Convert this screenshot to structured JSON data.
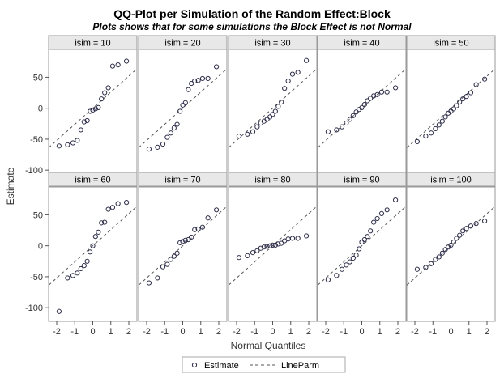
{
  "chart_data": {
    "type": "scatter",
    "title": "QQ-Plot per Simulation of the Random Effect:Block",
    "subtitle": "Plots shows that for some simulations the Block Effect is not Normal",
    "xlabel": "Normal Quantiles",
    "ylabel": "Estimate",
    "xlim": [
      -2.45,
      2.45
    ],
    "ylim": [
      -122,
      95
    ],
    "xticks": [
      -2,
      -1,
      0,
      1,
      2
    ],
    "yticks": [
      50,
      0,
      -50,
      -100
    ],
    "legend": {
      "position": "bottom",
      "entries": [
        "Estimate",
        "LineParm"
      ]
    },
    "colors": {
      "marker": "#2d2d4a",
      "line": "#555555",
      "strip": "#e8e8e8",
      "frame": "#9a9a9a"
    },
    "x_quantiles": [
      -1.87,
      -1.4,
      -1.1,
      -0.86,
      -0.66,
      -0.48,
      -0.31,
      -0.15,
      0.0,
      0.15,
      0.31,
      0.48,
      0.66,
      0.86,
      1.1,
      1.4,
      1.87
    ],
    "panels": [
      {
        "label": "isim = 10",
        "line": [
          0,
          26
        ],
        "y": [
          -61,
          -59,
          -56,
          -52,
          -35,
          -22,
          -20,
          -5,
          -3,
          -1,
          1,
          15,
          25,
          33,
          68,
          70,
          76
        ]
      },
      {
        "label": "isim = 20",
        "line": [
          0,
          26
        ],
        "y": [
          -66,
          -63,
          -58,
          -47,
          -40,
          -32,
          -26,
          -5,
          5,
          9,
          30,
          40,
          44,
          45,
          48,
          48,
          67
        ]
      },
      {
        "label": "isim = 30",
        "line": [
          0,
          26
        ],
        "y": [
          -45,
          -42,
          -38,
          -30,
          -24,
          -21,
          -18,
          -14,
          -10,
          -5,
          3,
          10,
          32,
          44,
          55,
          58,
          77
        ]
      },
      {
        "label": "isim = 40",
        "line": [
          0,
          26
        ],
        "y": [
          -38,
          -35,
          -30,
          -24,
          -18,
          -12,
          -6,
          -2,
          1,
          6,
          12,
          16,
          20,
          22,
          26,
          26,
          33
        ]
      },
      {
        "label": "isim = 50",
        "line": [
          0,
          26
        ],
        "y": [
          -54,
          -45,
          -40,
          -33,
          -27,
          -21,
          -14,
          -8,
          -5,
          -1,
          4,
          10,
          15,
          19,
          25,
          38,
          47
        ]
      },
      {
        "label": "isim = 60",
        "line": [
          0,
          26
        ],
        "y": [
          -106,
          -52,
          -48,
          -44,
          -37,
          -32,
          -25,
          -10,
          0,
          15,
          22,
          37,
          38,
          59,
          62,
          68,
          70
        ]
      },
      {
        "label": "isim = 70",
        "line": [
          0,
          26
        ],
        "y": [
          -60,
          -52,
          -34,
          -30,
          -22,
          -17,
          -12,
          5,
          7,
          9,
          10,
          14,
          26,
          27,
          30,
          45,
          58
        ]
      },
      {
        "label": "isim = 80",
        "line": [
          0,
          26
        ],
        "y": [
          -19,
          -16,
          -11,
          -8,
          -4,
          -2,
          -1,
          0,
          1,
          1,
          3,
          4,
          8,
          11,
          12,
          12,
          16
        ]
      },
      {
        "label": "isim = 90",
        "line": [
          0,
          26
        ],
        "y": [
          -55,
          -48,
          -38,
          -31,
          -26,
          -20,
          -15,
          -5,
          6,
          10,
          15,
          24,
          38,
          44,
          52,
          58,
          74
        ]
      },
      {
        "label": "isim = 100",
        "line": [
          0,
          26
        ],
        "y": [
          -38,
          -35,
          -29,
          -22,
          -18,
          -12,
          -6,
          -2,
          1,
          6,
          12,
          17,
          24,
          28,
          32,
          36,
          40
        ]
      }
    ]
  }
}
